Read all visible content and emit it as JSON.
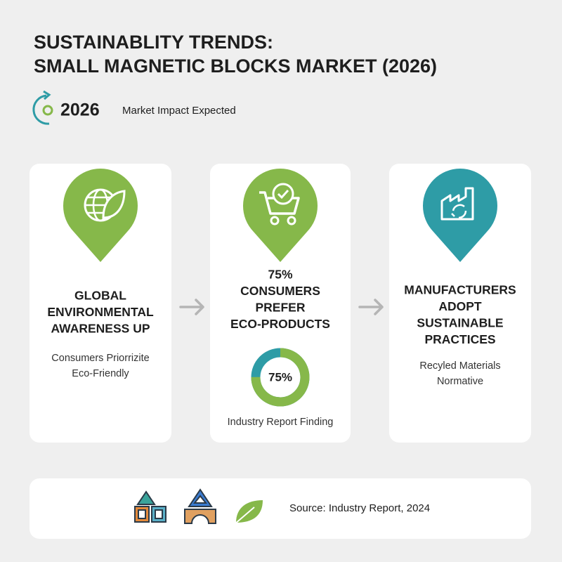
{
  "header": {
    "title_lines": [
      "SUSTAINABLITY TRENDS:",
      "SMALL MAGNETIC BLOCKS MARKET (2026)"
    ],
    "year": "2026",
    "year_caption": "Market Impact Expected"
  },
  "cards": [
    {
      "heading_lines": [
        "GLOBAL",
        "ENVIRONMENTAL",
        "AWARENESS UP"
      ],
      "caption_lines": [
        "Consumers Priorrizite",
        "Eco-Friendly"
      ]
    },
    {
      "heading_lines": [
        "75%",
        "CONSUMERS",
        "PREFER",
        "ECO-PRODUCTS"
      ],
      "gauge": {
        "value": 75,
        "label": "75%"
      },
      "caption_lines": [
        "Industry Report Finding"
      ]
    },
    {
      "heading_lines": [
        "MANUFACTURERS",
        "ADOPT",
        "SUSTAINABLE",
        "PRACTICES"
      ],
      "caption_lines": [
        "Recyled Materials",
        "Normative"
      ]
    }
  ],
  "footer": {
    "source": "Source: Industry Report, 2024"
  }
}
